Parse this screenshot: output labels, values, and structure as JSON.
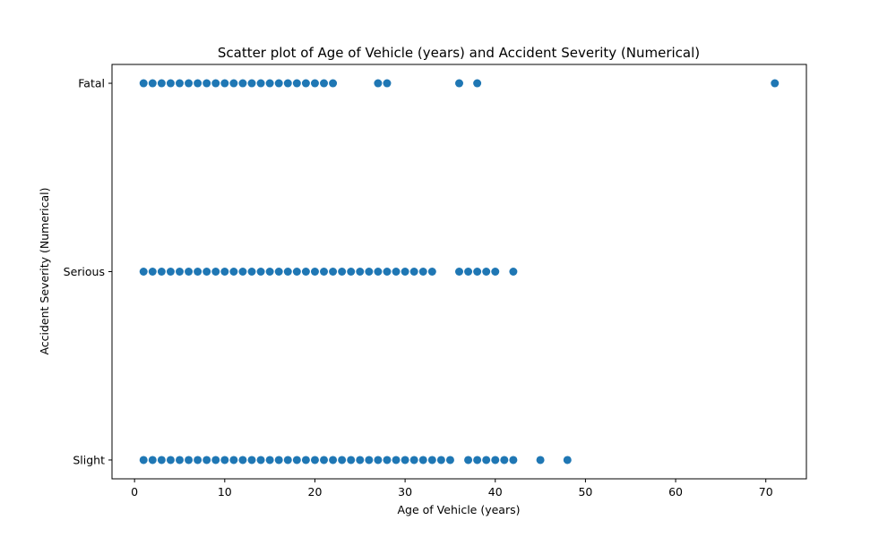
{
  "chart_data": {
    "type": "scatter",
    "title": "Scatter plot of Age of Vehicle (years) and Accident Severity (Numerical)",
    "xlabel": "Age of Vehicle (years)",
    "ylabel": "Accident Severity (Numerical)",
    "xlim": [
      -2.5,
      74.5
    ],
    "ylim": [
      -0.1,
      2.1
    ],
    "x_ticks": [
      0,
      10,
      20,
      30,
      40,
      50,
      60,
      70
    ],
    "y_ticks": [
      {
        "value": 0,
        "label": "Slight"
      },
      {
        "value": 1,
        "label": "Serious"
      },
      {
        "value": 2,
        "label": "Fatal"
      }
    ],
    "grid": false,
    "marker_color": "#1f77b4",
    "series": [
      {
        "y": 2,
        "x": [
          1,
          2,
          3,
          4,
          5,
          6,
          7,
          8,
          9,
          10,
          11,
          12,
          13,
          14,
          15,
          16,
          17,
          18,
          19,
          20,
          21,
          22,
          27,
          28,
          36,
          38,
          71
        ]
      },
      {
        "y": 1,
        "x": [
          1,
          2,
          3,
          4,
          5,
          6,
          7,
          8,
          9,
          10,
          11,
          12,
          13,
          14,
          15,
          16,
          17,
          18,
          19,
          20,
          21,
          22,
          23,
          24,
          25,
          26,
          27,
          28,
          29,
          30,
          31,
          32,
          33,
          36,
          37,
          38,
          39,
          40,
          42
        ]
      },
      {
        "y": 0,
        "x": [
          1,
          2,
          3,
          4,
          5,
          6,
          7,
          8,
          9,
          10,
          11,
          12,
          13,
          14,
          15,
          16,
          17,
          18,
          19,
          20,
          21,
          22,
          23,
          24,
          25,
          26,
          27,
          28,
          29,
          30,
          31,
          32,
          33,
          34,
          35,
          37,
          38,
          39,
          40,
          41,
          42,
          45,
          48
        ]
      }
    ]
  }
}
